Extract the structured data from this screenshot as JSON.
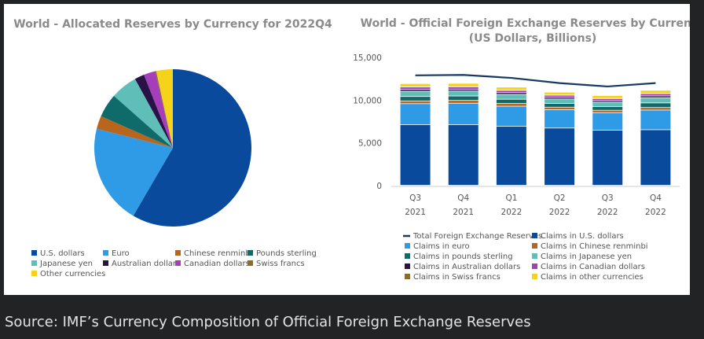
{
  "caption": "Source: IMF’s Currency Composition of Official Foreign Exchange Reserves",
  "currencies": [
    {
      "name": "U.S. dollars",
      "color": "#0a4a9c"
    },
    {
      "name": "Euro",
      "color": "#2f9be6"
    },
    {
      "name": "Chinese renminbi",
      "color": "#b8651e"
    },
    {
      "name": "Pounds sterling",
      "color": "#0f6b69"
    },
    {
      "name": "Japanese yen",
      "color": "#5fbfb8"
    },
    {
      "name": "Australian dollars",
      "color": "#2a1247"
    },
    {
      "name": "Canadian dollars",
      "color": "#a43fb9"
    },
    {
      "name": "Swiss francs",
      "color": "#8c6d22"
    },
    {
      "name": "Other currencies",
      "color": "#f5d31a"
    }
  ],
  "chart_data": [
    {
      "type": "pie",
      "title": "World - Allocated Reserves by Currency for 2022Q4",
      "labels": [
        "U.S. dollars",
        "Euro",
        "Chinese renminbi",
        "Pounds sterling",
        "Japanese yen",
        "Australian dollars",
        "Canadian dollars",
        "Swiss francs",
        "Other currencies"
      ],
      "values": [
        58.4,
        20.5,
        2.7,
        4.9,
        5.5,
        2.0,
        2.4,
        0.2,
        3.4
      ]
    },
    {
      "type": "bar",
      "stacked": true,
      "title": "World - Official Foreign Exchange Reserves by Currency",
      "subtitle": "(US Dollars, Billions)",
      "categories": [
        [
          "Q3",
          "2021"
        ],
        [
          "Q4",
          "2021"
        ],
        [
          "Q1",
          "2022"
        ],
        [
          "Q2",
          "2022"
        ],
        [
          "Q3",
          "2022"
        ],
        [
          "Q4",
          "2022"
        ]
      ],
      "ylim": [
        0,
        15000
      ],
      "yticks": [
        "0",
        "5,000",
        "10,000",
        "15,000"
      ],
      "series": [
        {
          "name": "Claims in U.S. dollars",
          "values": [
            7100,
            7100,
            6900,
            6700,
            6450,
            6500
          ]
        },
        {
          "name": "Claims in euro",
          "values": [
            2450,
            2500,
            2350,
            2150,
            2050,
            2300
          ]
        },
        {
          "name": "Claims in Chinese renminbi",
          "values": [
            320,
            330,
            320,
            290,
            280,
            300
          ]
        },
        {
          "name": "Claims in pounds sterling",
          "values": [
            520,
            520,
            500,
            440,
            440,
            540
          ]
        },
        {
          "name": "Claims in Japanese yen",
          "values": [
            620,
            580,
            560,
            520,
            510,
            610
          ]
        },
        {
          "name": "Claims in Australian dollars",
          "values": [
            220,
            220,
            210,
            200,
            190,
            210
          ]
        },
        {
          "name": "Claims in Canadian dollars",
          "values": [
            270,
            270,
            260,
            240,
            230,
            260
          ]
        },
        {
          "name": "Claims in Swiss francs",
          "values": [
            20,
            20,
            20,
            20,
            20,
            20
          ]
        },
        {
          "name": "Claims in other currencies",
          "values": [
            380,
            390,
            370,
            340,
            330,
            380
          ]
        }
      ],
      "line": {
        "name": "Total Foreign Exchange Reserves",
        "values": [
          12900,
          12950,
          12600,
          12000,
          11600,
          12000
        ]
      }
    }
  ]
}
